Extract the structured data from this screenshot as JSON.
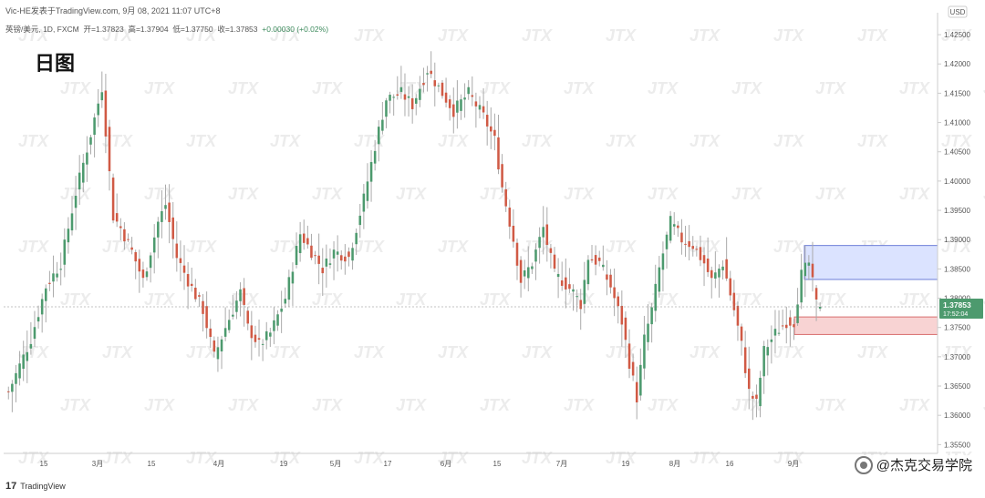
{
  "header": {
    "line1": "Vic-HE发表于TradingView.com,  9月 08, 2021 11:07 UTC+8",
    "symbol": "英镑/美元, 1D, FXCM",
    "open": "开=1.37823",
    "high": "高=1.37904",
    "low": "低=1.37750",
    "close": "收=1.37853",
    "change": "+0.00030 (+0.02%)"
  },
  "label": "日图",
  "watermark": "JTX",
  "footer": {
    "tv_brand": "TradingView",
    "wechat": "@杰克交易学院"
  },
  "colors": {
    "up": "#4d9a6e",
    "down": "#d05a45",
    "zone_upper": "#dbe3ff",
    "zone_lower": "#f8d3d3",
    "price_tag": "#4d9a6e"
  },
  "chart_data": {
    "type": "candlestick",
    "symbol": "英镑/美元",
    "timeframe": "1D",
    "y_unit": "USD",
    "ylim": [
      1.3535,
      1.4275
    ],
    "y_ticks": [
      "1.42500",
      "1.42000",
      "1.41500",
      "1.41000",
      "1.40500",
      "1.40000",
      "1.39500",
      "1.39000",
      "1.38500",
      "1.38000",
      "1.37500",
      "1.37000",
      "1.36500",
      "1.36000",
      "1.35500"
    ],
    "x_ticks": [
      "15",
      "3月",
      "15",
      "4月",
      "19",
      "5月",
      "17",
      "6月",
      "15",
      "7月",
      "19",
      "8月",
      "16",
      "9月"
    ],
    "last_price": {
      "value": "1.37853",
      "countdown": "17:52:04"
    },
    "zones": [
      {
        "name": "upper",
        "y_from": 1.3832,
        "y_to": 1.389
      },
      {
        "name": "lower",
        "y_from": 1.3738,
        "y_to": 1.3768
      }
    ],
    "waypoints": [
      [
        0,
        1.364
      ],
      [
        6,
        1.373
      ],
      [
        10,
        1.382
      ],
      [
        14,
        1.386
      ],
      [
        18,
        1.398
      ],
      [
        22,
        1.408
      ],
      [
        25,
        1.416
      ],
      [
        28,
        1.394
      ],
      [
        30,
        1.392
      ],
      [
        33,
        1.388
      ],
      [
        36,
        1.383
      ],
      [
        40,
        1.393
      ],
      [
        42,
        1.396
      ],
      [
        45,
        1.387
      ],
      [
        48,
        1.383
      ],
      [
        52,
        1.378
      ],
      [
        55,
        1.37
      ],
      [
        58,
        1.375
      ],
      [
        62,
        1.381
      ],
      [
        64,
        1.375
      ],
      [
        67,
        1.372
      ],
      [
        70,
        1.374
      ],
      [
        74,
        1.38
      ],
      [
        78,
        1.391
      ],
      [
        80,
        1.389
      ],
      [
        84,
        1.385
      ],
      [
        87,
        1.388
      ],
      [
        91,
        1.387
      ],
      [
        95,
        1.397
      ],
      [
        98,
        1.406
      ],
      [
        101,
        1.414
      ],
      [
        105,
        1.415
      ],
      [
        108,
        1.413
      ],
      [
        112,
        1.419
      ],
      [
        116,
        1.415
      ],
      [
        119,
        1.412
      ],
      [
        123,
        1.415
      ],
      [
        127,
        1.411
      ],
      [
        130,
        1.407
      ],
      [
        132,
        1.399
      ],
      [
        135,
        1.39
      ],
      [
        137,
        1.383
      ],
      [
        140,
        1.386
      ],
      [
        143,
        1.392
      ],
      [
        146,
        1.384
      ],
      [
        148,
        1.383
      ],
      [
        151,
        1.381
      ],
      [
        153,
        1.379
      ],
      [
        155,
        1.387
      ],
      [
        158,
        1.386
      ],
      [
        161,
        1.382
      ],
      [
        164,
        1.376
      ],
      [
        166,
        1.369
      ],
      [
        168,
        1.363
      ],
      [
        170,
        1.373
      ],
      [
        172,
        1.378
      ],
      [
        174,
        1.385
      ],
      [
        177,
        1.393
      ],
      [
        180,
        1.39
      ],
      [
        183,
        1.389
      ],
      [
        186,
        1.386
      ],
      [
        188,
        1.383
      ],
      [
        191,
        1.386
      ],
      [
        194,
        1.378
      ],
      [
        196,
        1.372
      ],
      [
        198,
        1.364
      ],
      [
        200,
        1.362
      ],
      [
        202,
        1.371
      ],
      [
        205,
        1.374
      ],
      [
        208,
        1.376
      ],
      [
        210,
        1.376
      ],
      [
        212,
        1.384
      ],
      [
        214,
        1.386
      ],
      [
        216,
        1.379
      ],
      [
        217,
        1.3785
      ]
    ]
  }
}
